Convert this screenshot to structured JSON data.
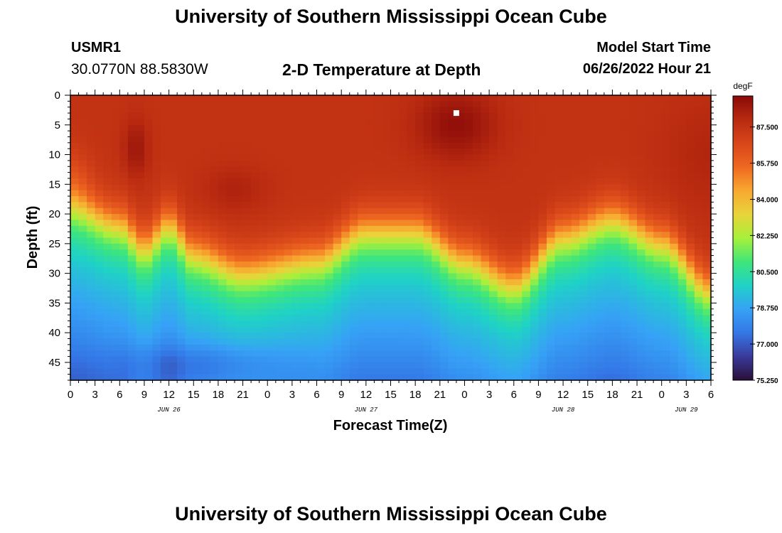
{
  "header": {
    "title": "University of Southern Mississippi Ocean Cube",
    "station": "USMR1",
    "coords": "30.0770N  88.5830W",
    "plot_title": "2-D Temperature at Depth",
    "model_start_label": "Model Start Time",
    "model_start_value": "06/26/2022 Hour 21"
  },
  "footer": {
    "title": "University of Southern Mississippi Ocean Cube"
  },
  "colors": {
    "ramp": [
      "#2a0f38",
      "#3a3a9a",
      "#3477e6",
      "#36a2f6",
      "#1fd2c6",
      "#3fe67a",
      "#a8f03a",
      "#e8d43a",
      "#f8a830",
      "#ee6820",
      "#d8461a",
      "#b82a10",
      "#8a0a08"
    ]
  },
  "chart_data": {
    "type": "heatmap",
    "title": "2-D Temperature at Depth",
    "xlabel": "Forecast Time(Z)",
    "ylabel": "Depth (ft)",
    "x_ticks": [
      "0",
      "3",
      "6",
      "9",
      "12",
      "15",
      "18",
      "21",
      "0",
      "3",
      "6",
      "9",
      "12",
      "15",
      "18",
      "21",
      "0",
      "3",
      "6",
      "9",
      "12",
      "15",
      "18",
      "21",
      "0",
      "3",
      "6"
    ],
    "date_labels": [
      {
        "label": "JUN 26",
        "hours": 12
      },
      {
        "label": "JUN 27",
        "hours": 36
      },
      {
        "label": "JUN 28",
        "hours": 60
      },
      {
        "label": "JUN 29",
        "hours": 75
      }
    ],
    "x_range_hours": [
      0,
      78
    ],
    "y_ticks": [
      0,
      5,
      10,
      15,
      20,
      25,
      30,
      35,
      40,
      45
    ],
    "y_range_ft": [
      0,
      48
    ],
    "colorbar": {
      "unit": "degF",
      "ticks": [
        "87.500",
        "85.750",
        "84.000",
        "82.250",
        "80.500",
        "78.750",
        "77.000",
        "75.250"
      ],
      "min": 75.25,
      "max": 89.0
    },
    "thermocline_depth_ft": {
      "hours": [
        0,
        6,
        9,
        12,
        15,
        21,
        30,
        36,
        42,
        48,
        54,
        60,
        66,
        72,
        78
      ],
      "depth": [
        16,
        19,
        23,
        19,
        24,
        27,
        25,
        20,
        20,
        25,
        29,
        21,
        18,
        22,
        30
      ]
    },
    "surface_temp_degF": 87.5,
    "bottom_temp_degF": 76.5,
    "marker": {
      "hours": 47,
      "depth_ft": 3
    }
  }
}
